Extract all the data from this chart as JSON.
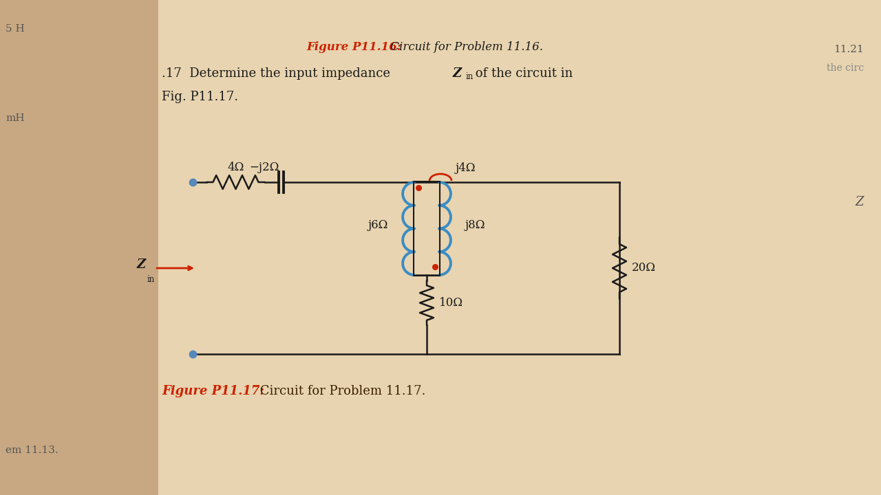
{
  "bg_color_left": "#c8a882",
  "bg_color_center": "#e8d4b0",
  "bg_color_right": "#ddc9a0",
  "wire_color": "#1a1a1a",
  "inductor_color": "#3a8cc4",
  "dot_color": "#cc2200",
  "title_color": "#cc2200",
  "arrow_color": "#cc2200",
  "arc_color": "#cc2200",
  "input_dot_color": "#5588bb",
  "text_color": "#1a1a1a",
  "label_4ohm": "4Ω",
  "label_j2ohm": "−j2Ω",
  "label_j4ohm": "j4Ω",
  "label_j6ohm": "j6Ω",
  "label_j8ohm": "j8Ω",
  "label_10ohm": "10Ω",
  "label_20ohm": "20Ω",
  "fig_caption": "Figure P11.17:",
  "fig_caption2": " Circuit for Problem 11.17.",
  "header_fig": "Figure P11.16:",
  "header_rest": " Circuit for Problem 11.16.",
  "prob_start": ".17  Determine the input impedance ",
  "prob_Zin": "Z",
  "prob_sub": "in",
  "prob_end": " of the circuit in",
  "prob_line2": "Fig. P11.17.",
  "side_left_top": "5 H",
  "side_left_mH": "mH",
  "side_right_num": "11.21",
  "side_right_txt": "the circ",
  "side_right_Z": "Z",
  "side_left_bot": "em 11.13."
}
